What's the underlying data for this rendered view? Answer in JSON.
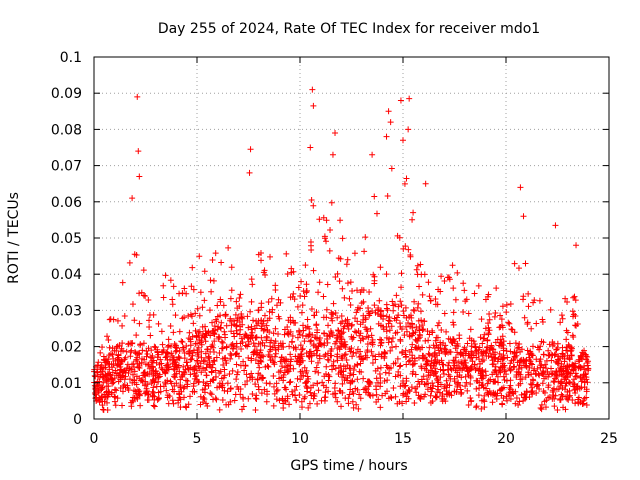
{
  "chart_data": {
    "type": "scatter",
    "title": "Day 255 of 2024, Rate Of TEC Index for receiver mdo1",
    "xlabel": "GPS time / hours",
    "ylabel": "ROTI / TECUs",
    "xlim": [
      0,
      25
    ],
    "ylim": [
      0,
      0.1
    ],
    "xticks": [
      "0",
      "5",
      "10",
      "15",
      "20",
      "25"
    ],
    "yticks": [
      "0",
      "0.01",
      "0.02",
      "0.03",
      "0.04",
      "0.05",
      "0.06",
      "0.07",
      "0.08",
      "0.09",
      "0.1"
    ],
    "grid": true,
    "marker": "+",
    "color": "#ff0000",
    "envelope": {
      "hour": [
        0,
        0.5,
        1,
        1.5,
        2,
        2.5,
        3,
        3.5,
        4,
        4.5,
        5,
        5.5,
        6,
        6.5,
        7,
        7.5,
        8,
        8.5,
        9,
        9.5,
        10,
        10.5,
        11,
        11.5,
        12,
        12.5,
        13,
        13.5,
        14,
        14.5,
        15,
        15.5,
        16,
        16.5,
        17,
        17.5,
        18,
        18.5,
        19,
        19.5,
        20,
        20.5,
        21,
        21.5,
        22,
        22.5,
        23,
        23.5,
        24
      ],
      "typical_roti": [
        0.009,
        0.01,
        0.011,
        0.012,
        0.013,
        0.012,
        0.012,
        0.012,
        0.012,
        0.013,
        0.014,
        0.015,
        0.016,
        0.016,
        0.017,
        0.016,
        0.017,
        0.017,
        0.017,
        0.016,
        0.016,
        0.017,
        0.017,
        0.017,
        0.017,
        0.017,
        0.017,
        0.018,
        0.018,
        0.018,
        0.018,
        0.017,
        0.016,
        0.014,
        0.013,
        0.013,
        0.013,
        0.013,
        0.013,
        0.013,
        0.013,
        0.012,
        0.012,
        0.012,
        0.012,
        0.012,
        0.012,
        0.011,
        0.011
      ],
      "peak_roti": [
        0.015,
        0.022,
        0.035,
        0.041,
        0.047,
        0.041,
        0.031,
        0.046,
        0.035,
        0.043,
        0.046,
        0.045,
        0.049,
        0.048,
        0.043,
        0.047,
        0.046,
        0.054,
        0.056,
        0.045,
        0.046,
        0.068,
        0.057,
        0.061,
        0.057,
        0.046,
        0.052,
        0.063,
        0.067,
        0.072,
        0.075,
        0.066,
        0.06,
        0.044,
        0.04,
        0.045,
        0.046,
        0.038,
        0.042,
        0.039,
        0.034,
        0.045,
        0.043,
        0.034,
        0.04,
        0.035,
        0.037,
        0.033,
        0.02
      ]
    },
    "notable_points": [
      {
        "x": 2.1,
        "y": 0.089
      },
      {
        "x": 2.15,
        "y": 0.074
      },
      {
        "x": 2.2,
        "y": 0.067
      },
      {
        "x": 1.85,
        "y": 0.061
      },
      {
        "x": 7.6,
        "y": 0.0745
      },
      {
        "x": 7.55,
        "y": 0.068
      },
      {
        "x": 10.6,
        "y": 0.091
      },
      {
        "x": 10.65,
        "y": 0.0865
      },
      {
        "x": 10.5,
        "y": 0.075
      },
      {
        "x": 11.7,
        "y": 0.079
      },
      {
        "x": 11.6,
        "y": 0.073
      },
      {
        "x": 14.3,
        "y": 0.085
      },
      {
        "x": 14.4,
        "y": 0.082
      },
      {
        "x": 14.2,
        "y": 0.078
      },
      {
        "x": 14.9,
        "y": 0.088
      },
      {
        "x": 15.3,
        "y": 0.0885
      },
      {
        "x": 15.25,
        "y": 0.08
      },
      {
        "x": 15.0,
        "y": 0.077
      },
      {
        "x": 13.5,
        "y": 0.073
      },
      {
        "x": 16.1,
        "y": 0.065
      },
      {
        "x": 20.7,
        "y": 0.064
      },
      {
        "x": 20.85,
        "y": 0.056
      },
      {
        "x": 22.4,
        "y": 0.0535
      },
      {
        "x": 23.4,
        "y": 0.048
      }
    ]
  }
}
